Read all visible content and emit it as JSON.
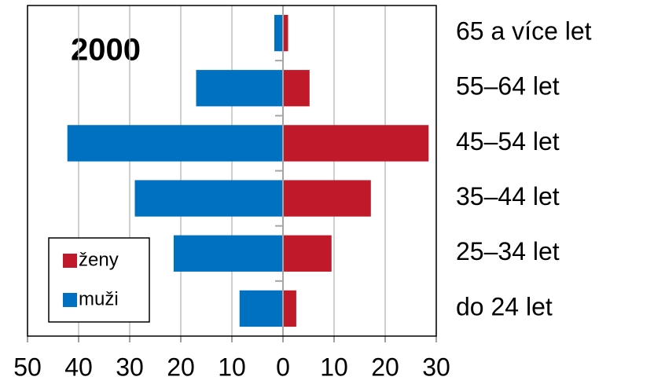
{
  "chart_data": {
    "type": "pyramid",
    "title": "2000",
    "categories": [
      "65 a více let",
      "55–64 let",
      "45–54 let",
      "35–44 let",
      "25–34 let",
      "do 24 let"
    ],
    "series": [
      {
        "name": "ženy",
        "color": "#c0192a",
        "values": [
          1,
          5.2,
          28.5,
          17.2,
          9.5,
          2.6
        ]
      },
      {
        "name": "muži",
        "color": "#0070c0",
        "values": [
          -1.7,
          -17,
          -42.2,
          -29,
          -21.4,
          -8.5
        ]
      }
    ],
    "xlim": [
      -50,
      30
    ],
    "xticks": [
      {
        "value": -50,
        "label": "50"
      },
      {
        "value": -40,
        "label": "40"
      },
      {
        "value": -30,
        "label": "30"
      },
      {
        "value": -20,
        "label": "20"
      },
      {
        "value": -10,
        "label": "10"
      },
      0,
      10,
      20,
      30
    ],
    "grid": true,
    "legend": "lower left"
  }
}
